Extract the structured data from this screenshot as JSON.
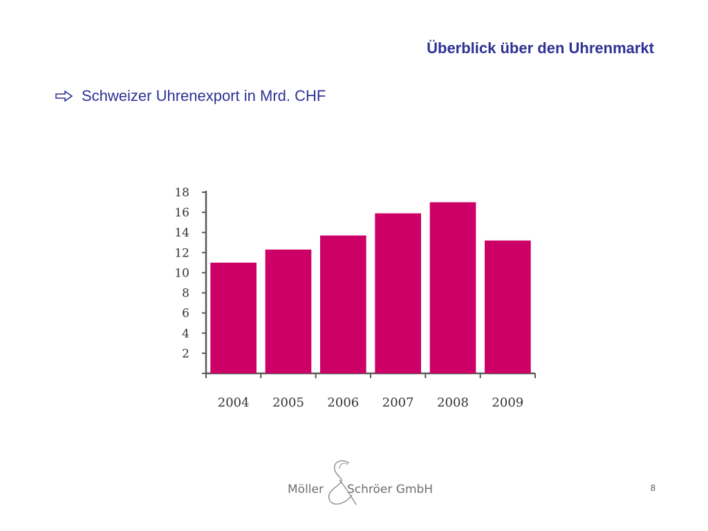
{
  "slide": {
    "title": "Überblick über den Uhrenmarkt",
    "bullet": "Schweizer Uhrenexport in Mrd. CHF",
    "page_number": "8"
  },
  "logo": {
    "left_text": "Möller",
    "right_text": "Schröer GmbH"
  },
  "chart_data": {
    "type": "bar",
    "categories": [
      "2004",
      "2005",
      "2006",
      "2007",
      "2008",
      "2009"
    ],
    "values": [
      11.0,
      12.3,
      13.7,
      15.9,
      17.0,
      13.2
    ],
    "ylim": [
      0,
      18
    ],
    "yticks": [
      2,
      4,
      6,
      8,
      10,
      12,
      14,
      16,
      18
    ],
    "title": "",
    "xlabel": "",
    "ylabel": "",
    "grid": false,
    "legend": "none",
    "bar_color": "#cc0066",
    "axis_color": "#595959"
  },
  "colors": {
    "title": "#2e3192",
    "bullet_text": "#2e3192",
    "logo_text": "#6d6e71"
  },
  "icons": {
    "bullet": "arrow-right-outline-icon",
    "logo": "ampersand-icon"
  }
}
